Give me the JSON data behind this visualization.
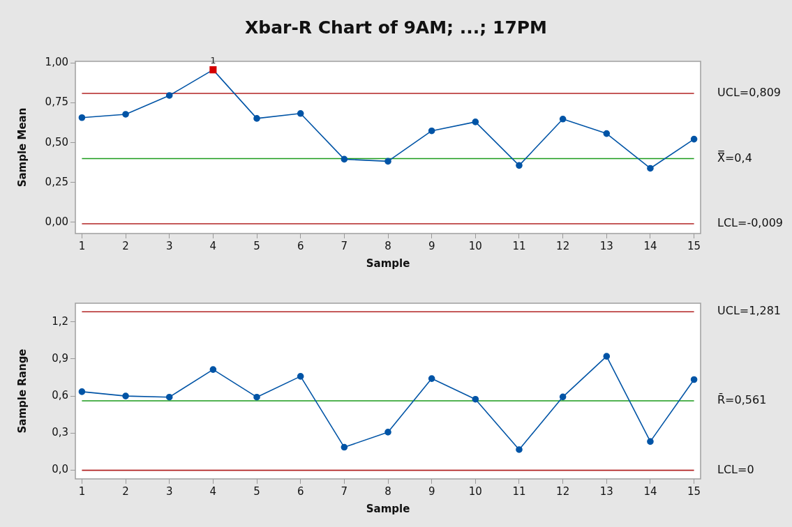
{
  "chart_data": [
    {
      "type": "line",
      "title": "Xbar-R Chart of 9AM; ...; 17PM",
      "xlabel": "Sample",
      "ylabel": "Sample Mean",
      "x": [
        1,
        2,
        3,
        4,
        5,
        6,
        7,
        8,
        9,
        10,
        11,
        12,
        13,
        14,
        15
      ],
      "series": [
        {
          "color": "#0054a6",
          "colors": [
            "#0054a6",
            "#0054a6",
            "#0054a6",
            "#d40000",
            "#0054a6",
            "#0054a6",
            "#0054a6",
            "#0054a6",
            "#0054a6",
            "#0054a6",
            "#0054a6",
            "#0054a6",
            "#0054a6",
            "#0054a6",
            "#0054a6"
          ],
          "marker": "circle",
          "values": [
            0.657,
            0.678,
            0.796,
            0.957,
            0.652,
            0.683,
            0.396,
            0.383,
            0.574,
            0.63,
            0.357,
            0.648,
            0.557,
            0.339,
            0.522
          ]
        }
      ],
      "xlim": [
        0.85,
        15.15
      ],
      "xticks": [
        1,
        2,
        3,
        4,
        5,
        6,
        7,
        8,
        9,
        10,
        11,
        12,
        13,
        14,
        15
      ],
      "ylim": [
        -0.07,
        1.01
      ],
      "yticks": [
        {
          "value": 0,
          "label": "0,00"
        },
        {
          "value": 0.25,
          "label": "0,25"
        },
        {
          "value": 0.5,
          "label": "0,50"
        },
        {
          "value": 0.75,
          "label": "0,75"
        },
        {
          "value": 1,
          "label": "1,00"
        }
      ],
      "ref_lines": [
        {
          "axis": "y",
          "value": 0.809,
          "label": "UCL=0,809",
          "color": "#b22222"
        },
        {
          "axis": "y",
          "value": 0.4,
          "label": "X̿=0,4",
          "color": "#1a9a1a"
        },
        {
          "axis": "y",
          "value": -0.009,
          "label": "LCL=-0,009",
          "color": "#b22222"
        }
      ],
      "annotations": [
        {
          "text": "1",
          "x": 4,
          "y": 0.957
        }
      ],
      "grid": false,
      "legend": false
    },
    {
      "type": "line",
      "xlabel": "Sample",
      "ylabel": "Sample Range",
      "x": [
        1,
        2,
        3,
        4,
        5,
        6,
        7,
        8,
        9,
        10,
        11,
        12,
        13,
        14,
        15
      ],
      "series": [
        {
          "color": "#0054a6",
          "marker": "circle",
          "values": [
            0.635,
            0.6,
            0.591,
            0.814,
            0.591,
            0.759,
            0.186,
            0.308,
            0.741,
            0.574,
            0.167,
            0.593,
            0.921,
            0.232,
            0.733
          ]
        }
      ],
      "xlim": [
        0.85,
        15.15
      ],
      "xticks": [
        1,
        2,
        3,
        4,
        5,
        6,
        7,
        8,
        9,
        10,
        11,
        12,
        13,
        14,
        15
      ],
      "ylim": [
        -0.07,
        1.35
      ],
      "yticks": [
        {
          "value": 0,
          "label": "0,0"
        },
        {
          "value": 0.3,
          "label": "0,3"
        },
        {
          "value": 0.6,
          "label": "0,6"
        },
        {
          "value": 0.9,
          "label": "0,9"
        },
        {
          "value": 1.2,
          "label": "1,2"
        }
      ],
      "ref_lines": [
        {
          "axis": "y",
          "value": 1.281,
          "label": "UCL=1,281",
          "color": "#b22222"
        },
        {
          "axis": "y",
          "value": 0.561,
          "label": "R̄=0,561",
          "color": "#1a9a1a"
        },
        {
          "axis": "y",
          "value": 0,
          "label": "LCL=0",
          "color": "#b22222"
        }
      ],
      "grid": false,
      "legend": false
    }
  ]
}
